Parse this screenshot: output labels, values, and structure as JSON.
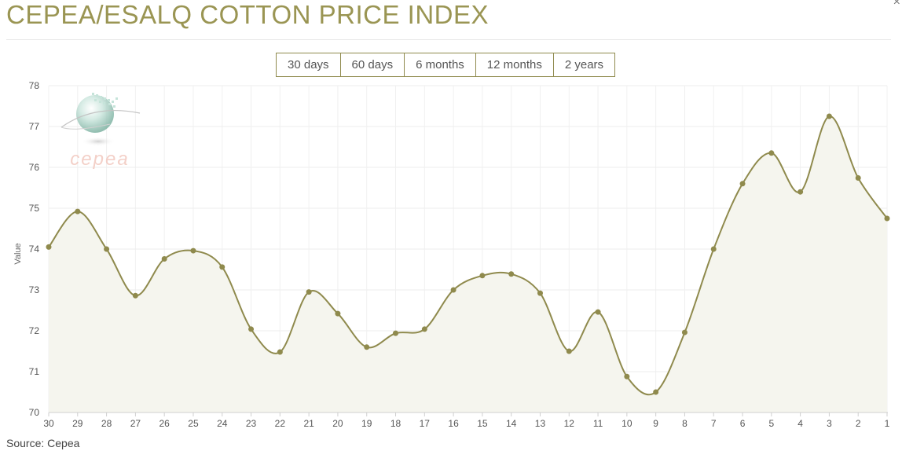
{
  "header": {
    "title": "CEPEA/ESALQ COTTON PRICE INDEX",
    "close_symbol": "×"
  },
  "tabs": [
    {
      "label": "30 days",
      "active": true
    },
    {
      "label": "60 days",
      "active": false
    },
    {
      "label": "6 months",
      "active": false
    },
    {
      "label": "12 months",
      "active": false
    },
    {
      "label": "2 years",
      "active": false
    }
  ],
  "footer": {
    "source": "Source: Cepea"
  },
  "logo": {
    "text": "cepea"
  },
  "colors": {
    "accent": "#9a9553",
    "line": "#8f8a4d",
    "area": "#f5f5ee",
    "grid": "#ececec",
    "logo_text": "#f2c8bf"
  },
  "chart_data": {
    "type": "area",
    "title": "",
    "xlabel": "",
    "ylabel": "Value",
    "ylim": [
      70,
      78
    ],
    "yticks": [
      70,
      71,
      72,
      73,
      74,
      75,
      76,
      77,
      78
    ],
    "grid": true,
    "categories": [
      "30",
      "29",
      "28",
      "27",
      "26",
      "25",
      "24",
      "23",
      "22",
      "21",
      "20",
      "19",
      "18",
      "17",
      "16",
      "15",
      "14",
      "13",
      "12",
      "11",
      "10",
      "9",
      "8",
      "7",
      "6",
      "5",
      "4",
      "3",
      "2",
      "1"
    ],
    "series": [
      {
        "values": [
          74.05,
          74.92,
          74.0,
          72.86,
          73.76,
          73.96,
          73.56,
          72.04,
          71.48,
          72.95,
          72.42,
          71.6,
          71.94,
          72.04,
          73.0,
          73.35,
          73.39,
          72.92,
          71.5,
          72.46,
          70.88,
          70.5,
          71.96,
          74.0,
          75.6,
          76.35,
          75.4,
          77.25,
          75.74,
          74.75
        ]
      }
    ]
  }
}
